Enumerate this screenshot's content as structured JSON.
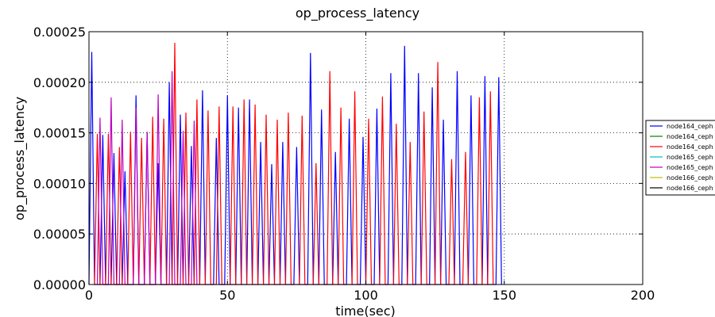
{
  "chart_data": {
    "type": "line",
    "title": "op_process_latency",
    "xlabel": "time(sec)",
    "ylabel": "op_process_latency",
    "xlim": [
      0,
      200
    ],
    "ylim": [
      0,
      0.00025
    ],
    "x_ticks": [
      "0",
      "50",
      "100",
      "150",
      "200"
    ],
    "y_ticks": [
      "0.00000",
      "0.00005",
      "0.00010",
      "0.00015",
      "0.00020",
      "0.00025"
    ],
    "grid": true,
    "legend_position": "right",
    "series": [
      {
        "name": "node164_ceph",
        "color": "#0000ff",
        "spikes": [
          [
            1,
            0.00023
          ],
          [
            5,
            0.000148
          ],
          [
            9,
            0.00013
          ],
          [
            13,
            0.000112
          ],
          [
            17,
            0.000187
          ],
          [
            21,
            0.00015
          ],
          [
            25,
            0.00012
          ],
          [
            29,
            0.0002
          ],
          [
            33,
            0.000168
          ],
          [
            37,
            0.000137
          ],
          [
            41,
            0.000192
          ],
          [
            46,
            0.000145
          ],
          [
            50,
            0.000187
          ],
          [
            54,
            0.000175
          ],
          [
            58,
            0.000183
          ],
          [
            62,
            0.000141
          ],
          [
            66,
            0.000119
          ],
          [
            70,
            0.000141
          ],
          [
            75,
            0.000136
          ],
          [
            80,
            0.000229
          ],
          [
            84,
            0.000173
          ],
          [
            89,
            0.000131
          ],
          [
            94,
            0.000164
          ],
          [
            99,
            0.000146
          ],
          [
            104,
            0.000174
          ],
          [
            109,
            0.000209
          ],
          [
            114,
            0.000236
          ],
          [
            119,
            0.000209
          ],
          [
            124,
            0.000195
          ],
          [
            128,
            0.000163
          ],
          [
            133,
            0.000211
          ],
          [
            138,
            0.000187
          ],
          [
            143,
            0.000206
          ],
          [
            148,
            0.000205
          ]
        ]
      },
      {
        "name": "node164_ceph",
        "color": "#008000",
        "spikes": []
      },
      {
        "name": "node164_ceph",
        "color": "#ff0000",
        "spikes": [
          [
            3,
            0.000149
          ],
          [
            7,
            0.000149
          ],
          [
            11,
            0.000136
          ],
          [
            15,
            0.000151
          ],
          [
            19,
            0.000145
          ],
          [
            23,
            0.000166
          ],
          [
            27,
            0.000164
          ],
          [
            31,
            0.000239
          ],
          [
            35,
            0.00017
          ],
          [
            39,
            0.000183
          ],
          [
            43,
            0.000172
          ],
          [
            47,
            0.000176
          ],
          [
            52,
            0.000176
          ],
          [
            56,
            0.000183
          ],
          [
            60,
            0.000178
          ],
          [
            64,
            0.000168
          ],
          [
            68,
            0.000163
          ],
          [
            72,
            0.00017
          ],
          [
            77,
            0.000167
          ],
          [
            82,
            0.00012
          ],
          [
            87,
            0.000211
          ],
          [
            91,
            0.000175
          ],
          [
            96,
            0.000191
          ],
          [
            101,
            0.000164
          ],
          [
            106,
            0.000186
          ],
          [
            111,
            0.000159
          ],
          [
            116,
            0.000141
          ],
          [
            121,
            0.000171
          ],
          [
            126,
            0.00022
          ],
          [
            131,
            0.000124
          ],
          [
            136,
            0.000131
          ],
          [
            141,
            0.000185
          ],
          [
            145,
            0.000191
          ]
        ]
      },
      {
        "name": "node165_ceph",
        "color": "#00bfbf",
        "spikes": []
      },
      {
        "name": "node165_ceph",
        "color": "#bf00bf",
        "spikes": [
          [
            4,
            0.000165
          ],
          [
            8,
            0.000185
          ],
          [
            12,
            0.000163
          ],
          [
            17,
            0.000175
          ],
          [
            21,
            0.000151
          ],
          [
            25,
            0.000188
          ],
          [
            30,
            0.000211
          ],
          [
            34,
            0.000152
          ],
          [
            38,
            0.000162
          ]
        ]
      },
      {
        "name": "node166_ceph",
        "color": "#bfbf00",
        "spikes": []
      },
      {
        "name": "node166_ceph",
        "color": "#000000",
        "spikes": []
      }
    ]
  }
}
